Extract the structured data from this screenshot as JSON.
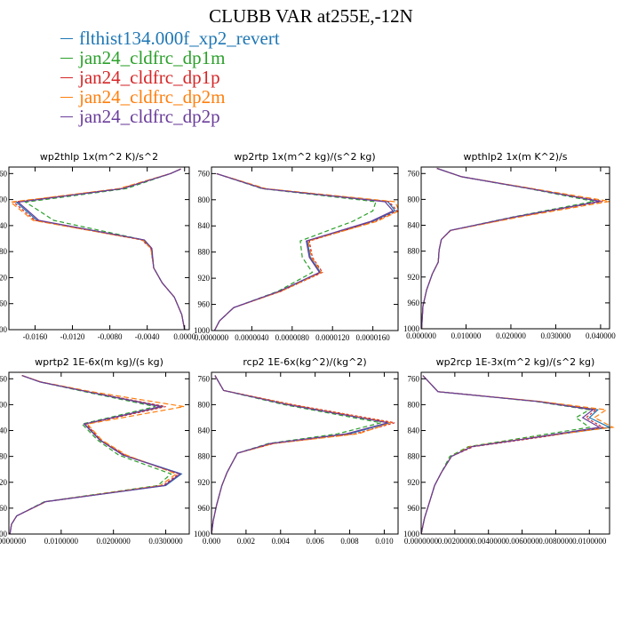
{
  "title": "CLUBB VAR at255E,-12N",
  "colors": {
    "blue": "#1f77b4",
    "green": "#2ca02c",
    "red": "#d62728",
    "orange": "#ff7f0e",
    "purple": "#6a3d9a"
  },
  "legend": [
    {
      "label": "flthist134.000f_xp2_revert",
      "color": "#1f77b4"
    },
    {
      "label": "jan24_cldfrc_dp1m",
      "color": "#2ca02c"
    },
    {
      "label": "jan24_cldfrc_dp1p",
      "color": "#d62728"
    },
    {
      "label": "jan24_cldfrc_dp2m",
      "color": "#ff7f0e"
    },
    {
      "label": "jan24_cldfrc_dp2p",
      "color": "#6a3d9a"
    }
  ],
  "chart_data": [
    {
      "type": "line",
      "title": "wp2thlp   1x(m^2 K)/s^2",
      "xlim": [
        -0.0188,
        0.0005
      ],
      "ylim": [
        1000,
        750
      ],
      "reverse_y": true,
      "xticks": [
        -0.016,
        -0.012,
        -0.008,
        -0.004,
        0
      ],
      "xtick_labels": [
        "-0.0160",
        "-0.0120",
        "-0.0080",
        "-0.0040",
        "0.0000"
      ],
      "yticks": [
        760,
        800,
        840,
        880,
        920,
        960,
        1000
      ],
      "y_decimals": 0,
      "y": [
        753,
        760,
        783,
        804,
        832,
        862,
        875,
        905,
        928,
        950,
        977,
        1000
      ],
      "series": [
        {
          "color": "#1f77b4",
          "x": [
            -0.0004,
            -0.0015,
            -0.0066,
            -0.018,
            -0.0158,
            -0.0044,
            -0.0036,
            -0.0033,
            -0.0024,
            -0.0011,
            -0.0003,
            0.0
          ]
        },
        {
          "color": "#2ca02c",
          "x": [
            -0.0004,
            -0.0015,
            -0.0062,
            -0.017,
            -0.014,
            -0.0044,
            -0.0035,
            -0.0033,
            -0.0024,
            -0.0011,
            -0.0003,
            0.0
          ]
        },
        {
          "color": "#d62728",
          "x": [
            -0.0004,
            -0.0015,
            -0.0068,
            -0.0183,
            -0.016,
            -0.0046,
            -0.0036,
            -0.0033,
            -0.0024,
            -0.0011,
            -0.0003,
            0.0
          ]
        },
        {
          "color": "#ff7f0e",
          "x": [
            -0.0004,
            -0.0015,
            -0.007,
            -0.0186,
            -0.0162,
            -0.0045,
            -0.0036,
            -0.0033,
            -0.0024,
            -0.0011,
            -0.0003,
            0.0
          ]
        },
        {
          "color": "#6a3d9a",
          "x": [
            -0.0004,
            -0.0015,
            -0.0066,
            -0.0178,
            -0.0156,
            -0.0043,
            -0.0035,
            -0.0033,
            -0.0024,
            -0.0011,
            -0.0003,
            0.0
          ]
        }
      ]
    },
    {
      "type": "line",
      "title": "wp2rtp   1x(m^2 kg)/(s^2 kg)",
      "xlim": [
        0,
        1.85e-05
      ],
      "ylim": [
        1000,
        750
      ],
      "reverse_y": true,
      "xticks": [
        0,
        4e-06,
        8e-06,
        1.2e-05,
        1.6e-05
      ],
      "xtick_labels": [
        "0.0000000",
        "0.0000040",
        "0.0000080",
        "0.0000120",
        "0.0000160"
      ],
      "yticks": [
        760,
        800,
        840,
        880,
        920,
        960,
        1000
      ],
      "y_decimals": 0,
      "y": [
        760,
        783,
        803,
        817,
        833,
        863,
        888,
        911,
        940,
        965,
        985,
        1000
      ],
      "series": [
        {
          "color": "#1f77b4",
          "x": [
            5e-07,
            5.2e-06,
            1.75e-05,
            1.82e-05,
            1.6e-05,
            9.5e-06,
            9.8e-06,
            1.08e-05,
            6.8e-06,
            2.2e-06,
            8e-07,
            3e-07
          ]
        },
        {
          "color": "#2ca02c",
          "x": [
            5e-07,
            5e-06,
            1.63e-05,
            1.6e-05,
            1.4e-05,
            8.8e-06,
            9e-06,
            1e-05,
            6.6e-06,
            2.2e-06,
            8e-07,
            3e-07
          ]
        },
        {
          "color": "#d62728",
          "x": [
            5e-07,
            5.2e-06,
            1.76e-05,
            1.84e-05,
            1.62e-05,
            9.7e-06,
            1e-05,
            1.1e-05,
            6.9e-06,
            2.2e-06,
            8e-07,
            3e-07
          ]
        },
        {
          "color": "#ff7f0e",
          "x": [
            5e-07,
            5.4e-06,
            1.82e-05,
            1.86e-05,
            1.64e-05,
            9.6e-06,
            9.9e-06,
            1.09e-05,
            6.9e-06,
            2.2e-06,
            8e-07,
            3e-07
          ]
        },
        {
          "color": "#6a3d9a",
          "x": [
            5e-07,
            5.1e-06,
            1.72e-05,
            1.8e-05,
            1.58e-05,
            9.4e-06,
            9.7e-06,
            1.07e-05,
            6.7e-06,
            2.2e-06,
            8e-07,
            3e-07
          ]
        }
      ]
    },
    {
      "type": "line",
      "title": "wpthlp2   1x(m K^2)/s",
      "xlim": [
        0,
        0.042
      ],
      "ylim": [
        1000,
        750
      ],
      "reverse_y": true,
      "xticks": [
        0,
        0.01,
        0.02,
        0.03,
        0.04
      ],
      "xtick_labels": [
        "0.000000",
        "0.010000",
        "0.020000",
        "0.030000",
        "0.040000"
      ],
      "yticks": [
        760,
        800,
        840,
        880,
        920,
        960,
        1000
      ],
      "y_decimals": 0,
      "y": [
        752,
        765,
        784,
        803,
        827,
        848,
        862,
        878,
        897,
        915,
        940,
        965,
        1000
      ],
      "series": [
        {
          "color": "#1f77b4",
          "x": [
            0.0035,
            0.009,
            0.025,
            0.04,
            0.021,
            0.0065,
            0.0045,
            0.004,
            0.0038,
            0.0025,
            0.0012,
            0.0004,
            0.0001
          ]
        },
        {
          "color": "#2ca02c",
          "x": [
            0.0035,
            0.009,
            0.0245,
            0.0385,
            0.0205,
            0.0065,
            0.0045,
            0.004,
            0.0038,
            0.0025,
            0.0012,
            0.0004,
            0.0001
          ]
        },
        {
          "color": "#d62728",
          "x": [
            0.0035,
            0.009,
            0.025,
            0.0405,
            0.0215,
            0.0066,
            0.0045,
            0.004,
            0.0038,
            0.0025,
            0.0012,
            0.0004,
            0.0001
          ]
        },
        {
          "color": "#ff7f0e",
          "x": [
            0.0035,
            0.009,
            0.0255,
            0.042,
            0.022,
            0.0066,
            0.0045,
            0.004,
            0.0038,
            0.0025,
            0.0012,
            0.0004,
            0.0001
          ]
        },
        {
          "color": "#6a3d9a",
          "x": [
            0.0035,
            0.009,
            0.0248,
            0.0398,
            0.0208,
            0.0065,
            0.0045,
            0.004,
            0.0038,
            0.0025,
            0.0012,
            0.0004,
            0.0001
          ]
        }
      ]
    },
    {
      "type": "line",
      "title": "wprtp2   1E-6x(m kg)/(s kg)",
      "xlim": [
        0,
        0.0345
      ],
      "ylim": [
        1000,
        750
      ],
      "reverse_y": true,
      "xticks": [
        0,
        0.01,
        0.02,
        0.03
      ],
      "xtick_labels": [
        "0.0000000",
        "0.0100000",
        "0.0200000",
        "0.0300000"
      ],
      "yticks": [
        760,
        800,
        840,
        880,
        920,
        960,
        1000
      ],
      "y_decimals": 0,
      "y": [
        755,
        765,
        780,
        803,
        830,
        855,
        878,
        907,
        925,
        950,
        972,
        985,
        1000
      ],
      "series": [
        {
          "color": "#1f77b4",
          "x": [
            0.0025,
            0.006,
            0.015,
            0.0295,
            0.0145,
            0.0175,
            0.022,
            0.033,
            0.03,
            0.007,
            0.0015,
            0.0005,
            0.0002
          ]
        },
        {
          "color": "#2ca02c",
          "x": [
            0.0025,
            0.006,
            0.0145,
            0.028,
            0.014,
            0.017,
            0.021,
            0.031,
            0.0285,
            0.0068,
            0.0015,
            0.0005,
            0.0002
          ]
        },
        {
          "color": "#d62728",
          "x": [
            0.0025,
            0.0061,
            0.0152,
            0.03,
            0.0148,
            0.0176,
            0.0222,
            0.0325,
            0.0295,
            0.007,
            0.0015,
            0.0005,
            0.0002
          ]
        },
        {
          "color": "#ff7f0e",
          "x": [
            0.0025,
            0.0062,
            0.0158,
            0.0335,
            0.015,
            0.0178,
            0.0225,
            0.032,
            0.029,
            0.0071,
            0.0015,
            0.0005,
            0.0002
          ]
        },
        {
          "color": "#6a3d9a",
          "x": [
            0.0025,
            0.006,
            0.015,
            0.029,
            0.0144,
            0.0174,
            0.0218,
            0.0328,
            0.0298,
            0.007,
            0.0015,
            0.0005,
            0.0002
          ]
        }
      ]
    },
    {
      "type": "line",
      "title": "rcp2   1E-6x(kg^2)/(kg^2)",
      "xlim": [
        0,
        0.0108
      ],
      "ylim": [
        1000,
        750
      ],
      "reverse_y": true,
      "xticks": [
        0,
        0.002,
        0.004,
        0.006,
        0.008,
        0.01
      ],
      "xtick_labels": [
        "0.000",
        "0.002",
        "0.004",
        "0.006",
        "0.008",
        "0.010"
      ],
      "yticks": [
        760,
        800,
        840,
        880,
        920,
        960,
        1000
      ],
      "y_decimals": 0,
      "y": [
        755,
        778,
        800,
        828,
        845,
        860,
        875,
        890,
        905,
        925,
        955,
        980,
        1000
      ],
      "series": [
        {
          "color": "#1f77b4",
          "x": [
            0.0002,
            0.0007,
            0.0045,
            0.0103,
            0.008,
            0.0035,
            0.0015,
            0.0012,
            0.0009,
            0.0006,
            0.0003,
            0.0001,
            0.0
          ]
        },
        {
          "color": "#2ca02c",
          "x": [
            0.0002,
            0.0007,
            0.0042,
            0.0098,
            0.0073,
            0.0033,
            0.0015,
            0.0012,
            0.0009,
            0.0006,
            0.0003,
            0.0001,
            0.0
          ]
        },
        {
          "color": "#d62728",
          "x": [
            0.0002,
            0.0007,
            0.0047,
            0.0106,
            0.0083,
            0.0036,
            0.0015,
            0.0012,
            0.0009,
            0.0006,
            0.0003,
            0.0001,
            0.0
          ]
        },
        {
          "color": "#ff7f0e",
          "x": [
            0.0002,
            0.0007,
            0.0046,
            0.0104,
            0.0085,
            0.0036,
            0.0015,
            0.0012,
            0.0009,
            0.0006,
            0.0003,
            0.0001,
            0.0
          ]
        },
        {
          "color": "#6a3d9a",
          "x": [
            0.0002,
            0.0007,
            0.0044,
            0.0102,
            0.0078,
            0.0034,
            0.0015,
            0.0012,
            0.0009,
            0.0006,
            0.0003,
            0.0001,
            0.0
          ]
        }
      ]
    },
    {
      "type": "line",
      "title": "wp2rcp   1E-3x(m^2 kg)/(s^2 kg)",
      "xlim": [
        0,
        0.0112
      ],
      "ylim": [
        1000,
        750
      ],
      "reverse_y": true,
      "xticks": [
        0,
        0.002,
        0.004,
        0.006,
        0.008,
        0.01
      ],
      "xtick_labels": [
        "0.0000000",
        "0.0020000",
        "0.0040000",
        "0.0060000",
        "0.0080000",
        "0.0100000"
      ],
      "yticks": [
        760,
        800,
        840,
        880,
        920,
        960,
        1000
      ],
      "y_decimals": 0,
      "y": [
        755,
        780,
        795,
        808,
        820,
        835,
        850,
        865,
        880,
        905,
        925,
        950,
        975,
        1000
      ],
      "series": [
        {
          "color": "#1f77b4",
          "x": [
            0.0001,
            0.001,
            0.007,
            0.0105,
            0.01,
            0.0112,
            0.007,
            0.003,
            0.0018,
            0.0012,
            0.0008,
            0.0005,
            0.0002,
            0.0
          ]
        },
        {
          "color": "#2ca02c",
          "x": [
            0.0001,
            0.001,
            0.0068,
            0.01,
            0.0092,
            0.01,
            0.0064,
            0.0028,
            0.0017,
            0.0012,
            0.0008,
            0.0005,
            0.0002,
            0.0
          ]
        },
        {
          "color": "#d62728",
          "x": [
            0.0001,
            0.001,
            0.007,
            0.0104,
            0.0098,
            0.0108,
            0.0072,
            0.0031,
            0.0018,
            0.0012,
            0.0008,
            0.0005,
            0.0002,
            0.0
          ]
        },
        {
          "color": "#ff7f0e",
          "x": [
            0.0001,
            0.001,
            0.0071,
            0.011,
            0.0103,
            0.0114,
            0.0068,
            0.0029,
            0.0018,
            0.0012,
            0.0008,
            0.0005,
            0.0002,
            0.0
          ]
        },
        {
          "color": "#6a3d9a",
          "x": [
            0.0001,
            0.001,
            0.0069,
            0.0102,
            0.0096,
            0.0106,
            0.0069,
            0.003,
            0.0018,
            0.0012,
            0.0008,
            0.0005,
            0.0002,
            0.0
          ]
        }
      ]
    }
  ]
}
